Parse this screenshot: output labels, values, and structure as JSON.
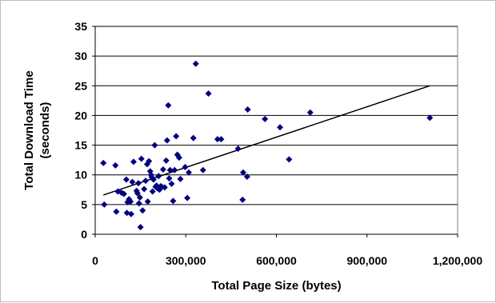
{
  "chart_data": {
    "type": "scatter",
    "title": "",
    "xlabel": "Total Page Size (bytes)",
    "ylabel_lines": [
      "Total Download Time",
      "(seconds)"
    ],
    "xlim": [
      0,
      1200000
    ],
    "ylim": [
      0,
      35
    ],
    "x_ticks": [
      0,
      300000,
      600000,
      900000,
      1200000
    ],
    "x_tick_labels": [
      "0",
      "300,000",
      "600,000",
      "900,000",
      "1,200,000"
    ],
    "y_ticks": [
      0,
      5,
      10,
      15,
      20,
      25,
      30,
      35
    ],
    "y_tick_labels": [
      "0",
      "5",
      "10",
      "15",
      "20",
      "25",
      "30",
      "35"
    ],
    "grid": "horizontal",
    "legend": "none",
    "marker_color": "#000080",
    "trendline": {
      "x": [
        27000,
        1108000
      ],
      "y": [
        6.6,
        25.0
      ]
    },
    "points": [
      [
        27000,
        12.0
      ],
      [
        30000,
        5.0
      ],
      [
        67000,
        11.6
      ],
      [
        70000,
        3.8
      ],
      [
        75000,
        7.2
      ],
      [
        87000,
        7.0
      ],
      [
        95000,
        6.8
      ],
      [
        103000,
        9.2
      ],
      [
        105000,
        3.6
      ],
      [
        107000,
        5.4
      ],
      [
        112000,
        5.9
      ],
      [
        117000,
        5.5
      ],
      [
        119000,
        3.4
      ],
      [
        123000,
        8.8
      ],
      [
        127000,
        12.2
      ],
      [
        137000,
        7.3
      ],
      [
        140000,
        6.9
      ],
      [
        143000,
        8.6
      ],
      [
        145000,
        5.2
      ],
      [
        148000,
        6.2
      ],
      [
        150000,
        1.2
      ],
      [
        153000,
        12.7
      ],
      [
        157000,
        4.0
      ],
      [
        162000,
        7.6
      ],
      [
        167000,
        9.0
      ],
      [
        172000,
        11.8
      ],
      [
        174000,
        5.5
      ],
      [
        178000,
        12.3
      ],
      [
        182000,
        10.6
      ],
      [
        185000,
        10.0
      ],
      [
        187000,
        9.6
      ],
      [
        190000,
        7.2
      ],
      [
        193000,
        9.2
      ],
      [
        197000,
        15.0
      ],
      [
        200000,
        8.0
      ],
      [
        203000,
        8.2
      ],
      [
        207000,
        7.7
      ],
      [
        210000,
        9.8
      ],
      [
        213000,
        7.5
      ],
      [
        217000,
        8.1
      ],
      [
        220000,
        8.0
      ],
      [
        225000,
        10.9
      ],
      [
        230000,
        7.9
      ],
      [
        235000,
        12.4
      ],
      [
        238000,
        15.8
      ],
      [
        242000,
        21.7
      ],
      [
        245000,
        9.4
      ],
      [
        248000,
        10.8
      ],
      [
        253000,
        8.5
      ],
      [
        258000,
        5.6
      ],
      [
        263000,
        10.8
      ],
      [
        268000,
        16.5
      ],
      [
        272000,
        13.4
      ],
      [
        278000,
        12.9
      ],
      [
        282000,
        9.3
      ],
      [
        298000,
        11.3
      ],
      [
        305000,
        6.1
      ],
      [
        310000,
        10.4
      ],
      [
        325000,
        16.2
      ],
      [
        333000,
        28.7
      ],
      [
        357000,
        10.8
      ],
      [
        375000,
        23.7
      ],
      [
        405000,
        16.0
      ],
      [
        417000,
        16.0
      ],
      [
        473000,
        14.4
      ],
      [
        488000,
        5.8
      ],
      [
        490000,
        10.4
      ],
      [
        503000,
        9.7
      ],
      [
        505000,
        21.0
      ],
      [
        562000,
        19.4
      ],
      [
        612000,
        18.0
      ],
      [
        642000,
        12.6
      ],
      [
        712000,
        20.5
      ],
      [
        1108000,
        19.6
      ]
    ]
  }
}
